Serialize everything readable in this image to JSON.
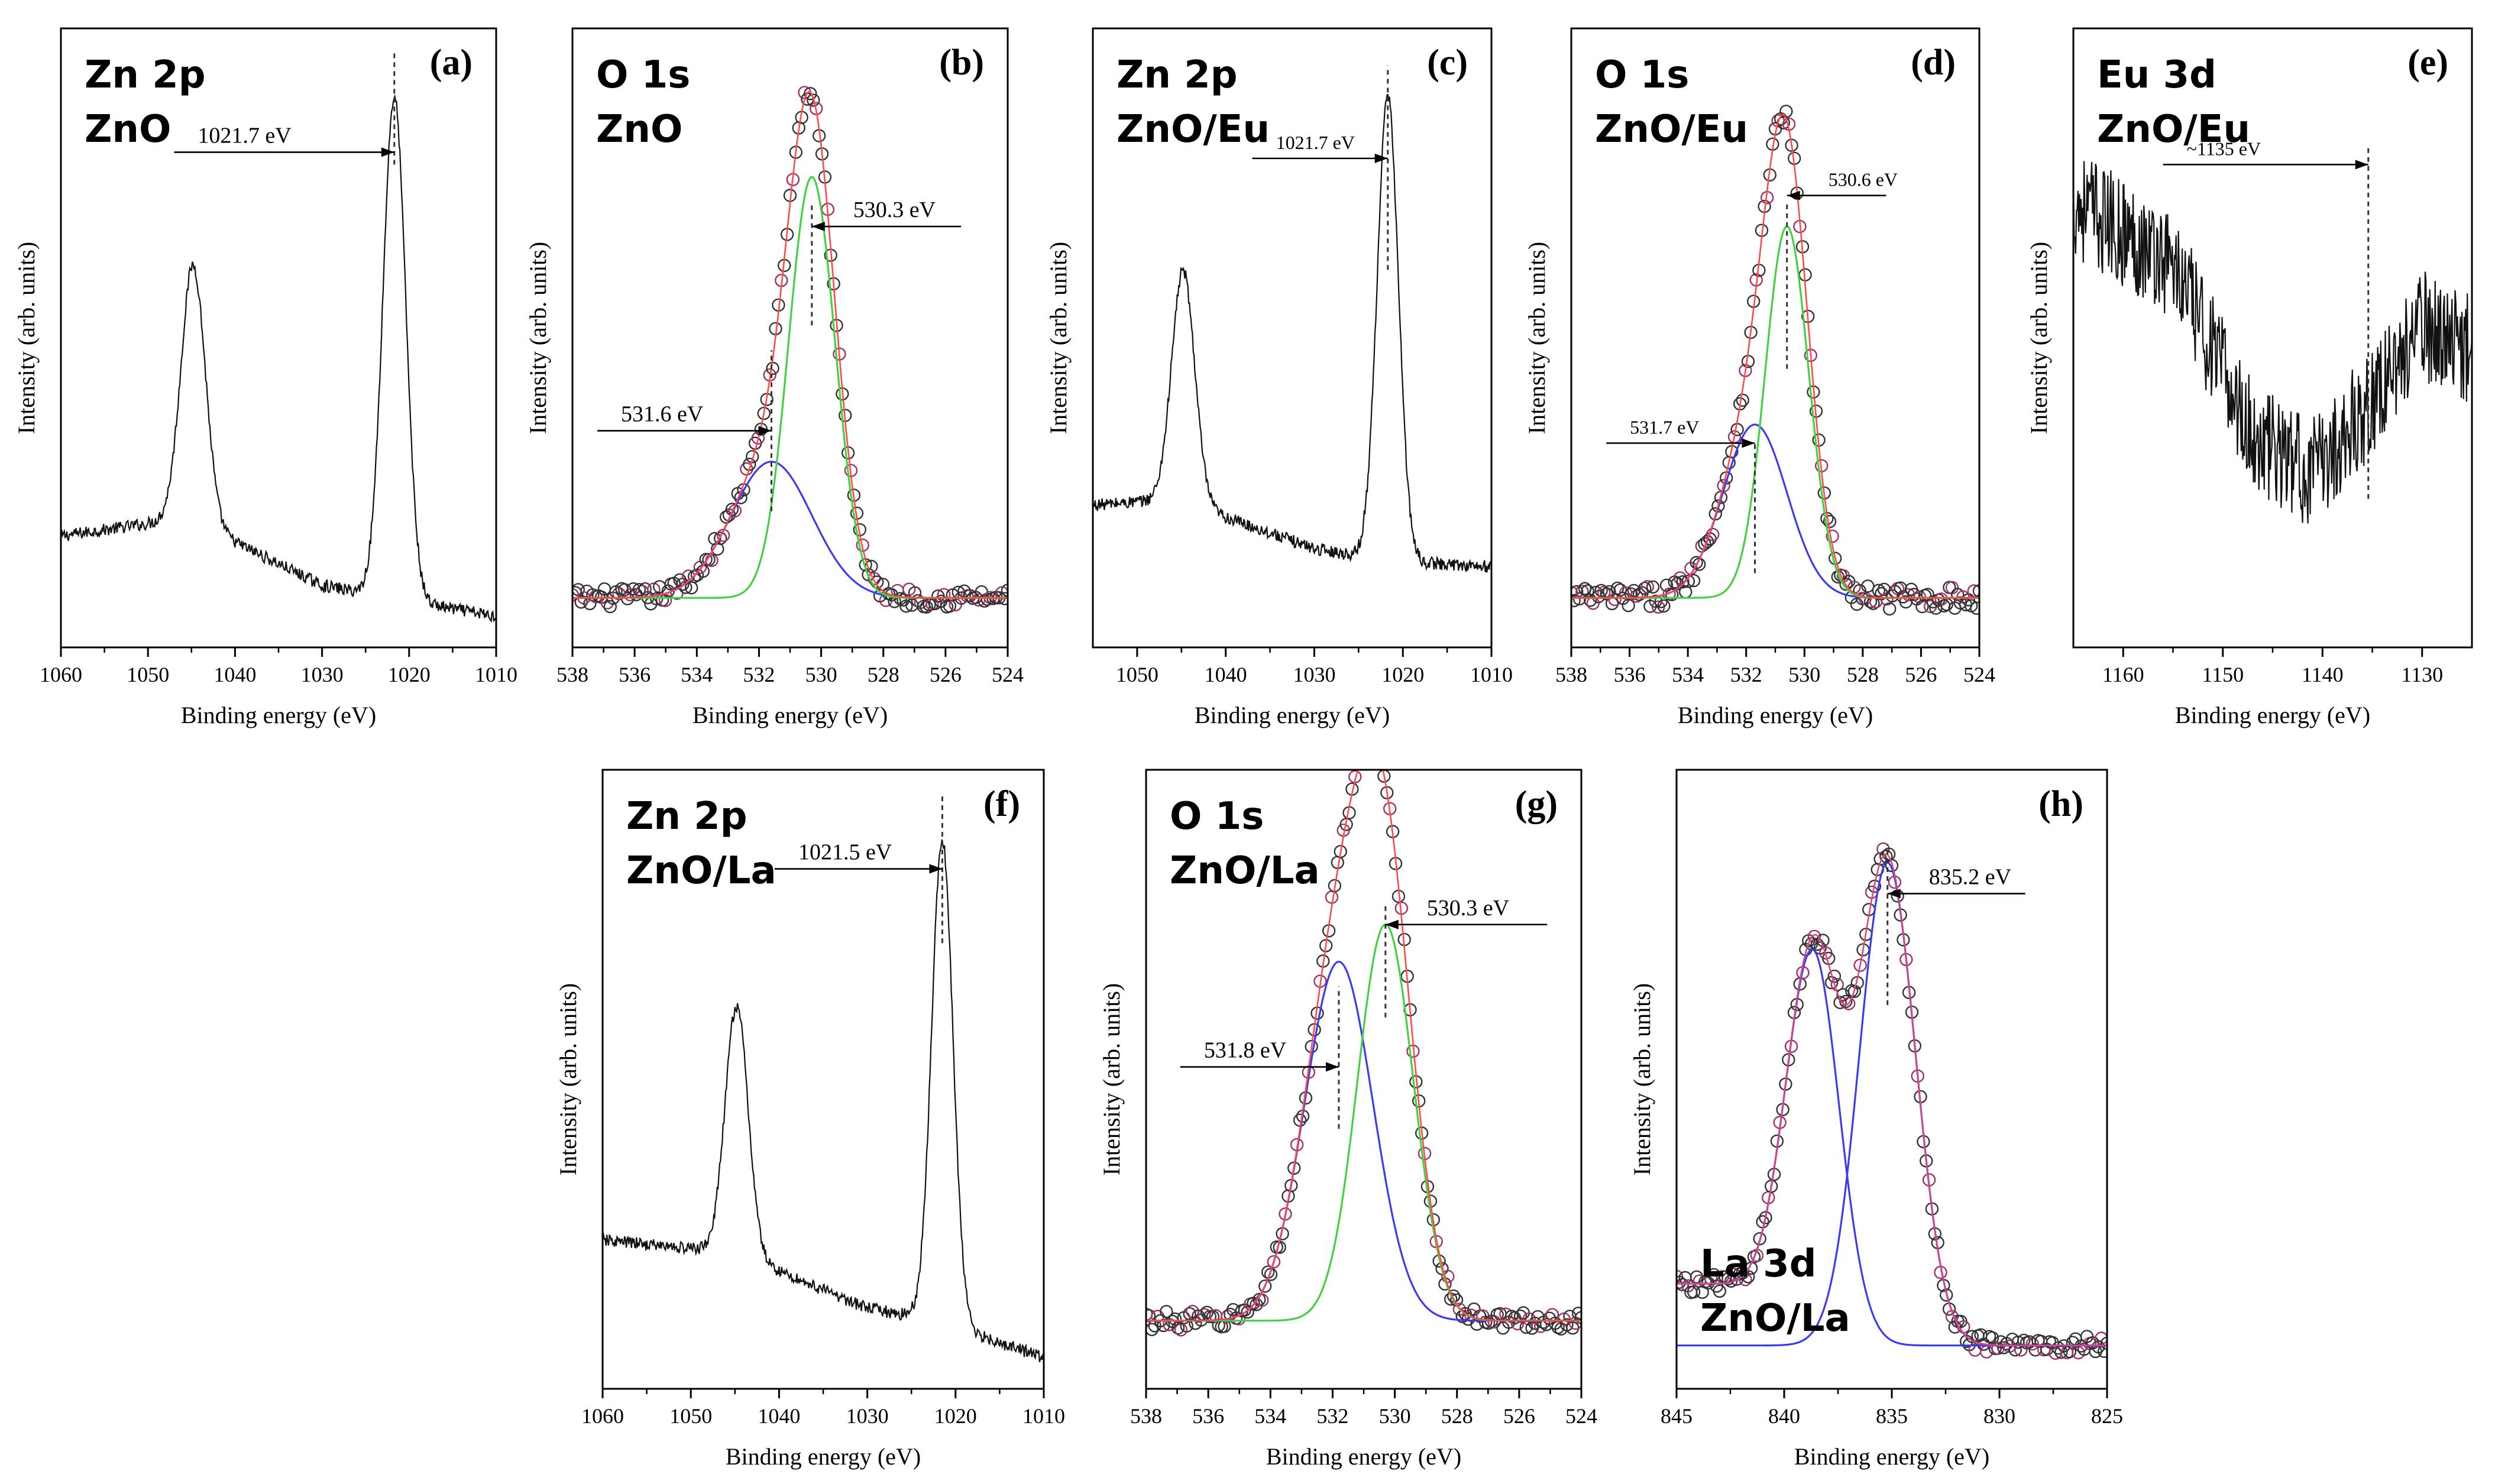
{
  "chart_data": [
    {
      "id": "a",
      "letter": "(a)",
      "type": "line",
      "title_lines": [
        "Zn 2p",
        "ZnO"
      ],
      "xlabel": "Binding energy (eV)",
      "ylabel": "Intensity (arb. units)",
      "xlim": [
        1060,
        1010
      ],
      "ylim": [
        0,
        100
      ],
      "xticks": [
        1060,
        1050,
        1040,
        1030,
        1020,
        1010
      ],
      "series": [
        {
          "name": "spectrum",
          "style": "black-noisy",
          "baseline": [
            [
              1060,
              18
            ],
            [
              1045,
              21
            ],
            [
              1040,
              17
            ],
            [
              1030,
              10
            ],
            [
              1022,
              8
            ],
            [
              1010,
              5
            ]
          ],
          "peaks": [
            {
              "center": 1044.8,
              "height": 41,
              "width": 1.4
            },
            {
              "center": 1021.7,
              "height": 81,
              "width": 1.3
            }
          ],
          "noise": 1.0
        }
      ],
      "annotations": [
        {
          "text": "1021.7 eV",
          "x": 1021.7,
          "y": 80,
          "from_x": 1047,
          "dir": "right",
          "text_size": "normal"
        }
      ],
      "dashed_lines": [
        {
          "x": 1021.7,
          "y0": 78,
          "y1": 96
        }
      ]
    },
    {
      "id": "b",
      "letter": "(b)",
      "type": "line",
      "title_lines": [
        "O 1s",
        "ZnO"
      ],
      "xlabel": "Binding energy (eV)",
      "ylabel": "Intensity (arb. units)",
      "xlim": [
        538,
        524
      ],
      "ylim": [
        0,
        100
      ],
      "xticks": [
        538,
        536,
        534,
        532,
        530,
        528,
        526,
        524
      ],
      "components": [
        {
          "name": "O 1s component 531.6 eV",
          "color": "#3b3bf0",
          "center": 531.6,
          "height": 22,
          "width": 1.3,
          "offset": 8
        },
        {
          "name": "O 1s component 530.3 eV",
          "color": "#43d143",
          "center": 530.3,
          "height": 68,
          "width": 0.75,
          "offset": 8
        }
      ],
      "fit_color": "#ff4a4a",
      "markers": true,
      "marker_noise": 1.5,
      "annotations": [
        {
          "text": "530.3 eV",
          "x": 530.3,
          "y": 68,
          "from_x": 525.5,
          "dir": "left",
          "text_size": "normal"
        },
        {
          "text": "531.6 eV",
          "x": 531.6,
          "y": 35,
          "from_x": 537.2,
          "dir": "right",
          "text_size": "normal"
        }
      ],
      "dashed_lines": [
        {
          "x": 530.3,
          "y0": 52,
          "y1": 72
        },
        {
          "x": 531.6,
          "y0": 22,
          "y1": 48
        }
      ]
    },
    {
      "id": "c",
      "letter": "(c)",
      "type": "line",
      "title_lines": [
        "Zn 2p",
        "ZnO/Eu"
      ],
      "xlabel": "Binding energy (eV)",
      "ylabel": "Intensity (arb. units)",
      "xlim": [
        1055,
        1010
      ],
      "ylim": [
        0,
        100
      ],
      "xticks": [
        1050,
        1040,
        1030,
        1020,
        1010
      ],
      "series": [
        {
          "name": "spectrum",
          "style": "black-noisy",
          "baseline": [
            [
              1055,
              23
            ],
            [
              1045,
              24
            ],
            [
              1040,
              21
            ],
            [
              1030,
              16
            ],
            [
              1022,
              14
            ],
            [
              1010,
              13
            ]
          ],
          "peaks": [
            {
              "center": 1044.8,
              "height": 37,
              "width": 1.3
            },
            {
              "center": 1021.7,
              "height": 75,
              "width": 1.2
            }
          ],
          "noise": 1.0
        }
      ],
      "annotations": [
        {
          "text": "1021.7 eV",
          "x": 1021.7,
          "y": 79,
          "from_x": 1037,
          "dir": "right",
          "text_size": "small"
        }
      ],
      "dashed_lines": [
        {
          "x": 1021.7,
          "y0": 61,
          "y1": 94
        }
      ]
    },
    {
      "id": "d",
      "letter": "(d)",
      "type": "line",
      "title_lines": [
        "O 1s",
        "ZnO/Eu"
      ],
      "xlabel": "Binding energy (eV)",
      "ylabel": "Intensity (arb. units)",
      "xlim": [
        538,
        524
      ],
      "ylim": [
        0,
        100
      ],
      "xticks": [
        538,
        536,
        534,
        532,
        530,
        528,
        526,
        524
      ],
      "components": [
        {
          "name": "O 1s component 531.7 eV",
          "color": "#3b3bf0",
          "center": 531.7,
          "height": 28,
          "width": 1.1,
          "offset": 8
        },
        {
          "name": "O 1s component 530.6 eV",
          "color": "#43d143",
          "center": 530.6,
          "height": 60,
          "width": 0.75,
          "offset": 8
        }
      ],
      "fit_color": "#ff4a4a",
      "markers": true,
      "marker_noise": 1.8,
      "annotations": [
        {
          "text": "530.6 eV",
          "x": 530.6,
          "y": 73,
          "from_x": 527.2,
          "dir": "left",
          "text_size": "small"
        },
        {
          "text": "531.7 eV",
          "x": 531.7,
          "y": 33,
          "from_x": 536.8,
          "dir": "right",
          "text_size": "small"
        }
      ],
      "dashed_lines": [
        {
          "x": 530.6,
          "y0": 45,
          "y1": 72
        },
        {
          "x": 531.7,
          "y0": 12,
          "y1": 33
        }
      ]
    },
    {
      "id": "e",
      "letter": "(e)",
      "type": "line",
      "title_lines": [
        "Eu 3d",
        "ZnO/Eu"
      ],
      "xlabel": "Binding energy (eV)",
      "ylabel": "Intensity (arb. units)",
      "xlim": [
        1165,
        1125
      ],
      "ylim": [
        0,
        100
      ],
      "xticks": [
        1160,
        1150,
        1140,
        1130
      ],
      "series": [
        {
          "name": "spectrum",
          "style": "black-very-noisy",
          "baseline": [
            [
              1165,
              72
            ],
            [
              1155,
              62
            ],
            [
              1147,
              34
            ],
            [
              1141,
              28
            ],
            [
              1135,
              40
            ],
            [
              1130,
              52
            ],
            [
              1125,
              48
            ]
          ],
          "peaks": [],
          "noise": 9
        }
      ],
      "annotations": [
        {
          "text": "~1135 eV",
          "x": 1135.4,
          "y": 78,
          "from_x": 1156,
          "dir": "right",
          "text_size": "small"
        }
      ],
      "dashed_lines": [
        {
          "x": 1135.4,
          "y0": 24,
          "y1": 81
        }
      ]
    },
    {
      "id": "f",
      "letter": "(f)",
      "type": "line",
      "title_lines": [
        "Zn 2p",
        "ZnO/La"
      ],
      "xlabel": "Binding energy (eV)",
      "ylabel": "Intensity (arb. units)",
      "xlim": [
        1060,
        1010
      ],
      "ylim": [
        0,
        100
      ],
      "xticks": [
        1060,
        1050,
        1040,
        1030,
        1020,
        1010
      ],
      "series": [
        {
          "name": "spectrum",
          "style": "black-noisy",
          "baseline": [
            [
              1060,
              24
            ],
            [
              1045,
              22
            ],
            [
              1040,
              19
            ],
            [
              1030,
              13
            ],
            [
              1022,
              11
            ],
            [
              1010,
              5
            ]
          ],
          "peaks": [
            {
              "center": 1044.8,
              "height": 40,
              "width": 1.3
            },
            {
              "center": 1021.5,
              "height": 78,
              "width": 1.2
            }
          ],
          "noise": 1.0
        }
      ],
      "annotations": [
        {
          "text": "1021.5 eV",
          "x": 1021.5,
          "y": 84,
          "from_x": 1040.5,
          "dir": "right",
          "text_size": "normal"
        }
      ],
      "dashed_lines": [
        {
          "x": 1021.5,
          "y0": 72,
          "y1": 96
        }
      ]
    },
    {
      "id": "g",
      "letter": "(g)",
      "type": "line",
      "title_lines": [
        "O 1s",
        "ZnO/La"
      ],
      "xlabel": "Binding energy (eV)",
      "ylabel": "Intensity (arb. units)",
      "xlim": [
        538,
        524
      ],
      "ylim": [
        0,
        100
      ],
      "xticks": [
        538,
        536,
        534,
        532,
        530,
        528,
        526,
        524
      ],
      "components": [
        {
          "name": "O 1s component 531.8 eV",
          "color": "#3b3bf0",
          "center": 531.8,
          "height": 58,
          "width": 1.1,
          "offset": 11
        },
        {
          "name": "O 1s component 530.3 eV",
          "color": "#43d143",
          "center": 530.3,
          "height": 64,
          "width": 0.9,
          "offset": 11
        }
      ],
      "fit_color": "#ff4a4a",
      "markers": true,
      "marker_noise": 1.5,
      "annotations": [
        {
          "text": "530.3 eV",
          "x": 530.3,
          "y": 75,
          "from_x": 525.1,
          "dir": "left",
          "text_size": "normal"
        },
        {
          "text": "531.8 eV",
          "x": 531.8,
          "y": 52,
          "from_x": 536.9,
          "dir": "right",
          "text_size": "normal"
        }
      ],
      "dashed_lines": [
        {
          "x": 530.3,
          "y0": 60,
          "y1": 78
        },
        {
          "x": 531.8,
          "y0": 42,
          "y1": 65
        }
      ]
    },
    {
      "id": "h",
      "letter": "(h)",
      "type": "line",
      "title_lines": [
        "La 3d",
        "ZnO/La"
      ],
      "title_position": "bottom-left",
      "xlabel": "Binding energy (eV)",
      "ylabel": "Intensity (arb. units)",
      "xlim": [
        845,
        825
      ],
      "ylim": [
        0,
        100
      ],
      "xticks": [
        845,
        840,
        835,
        830,
        825
      ],
      "components": [
        {
          "name": "La 3d component 838.7 eV",
          "color": "#3b3bf0",
          "center": 838.7,
          "height": 64,
          "width": 1.25,
          "offset": 7,
          "shoulder": {
            "from": 838.7,
            "level": 10
          }
        },
        {
          "name": "La 3d component 835.2 eV",
          "color": "#3b3bf0",
          "center": 835.2,
          "height": 78,
          "width": 1.3,
          "offset": 7
        }
      ],
      "fit_color": "#d94a7a",
      "markers": true,
      "marker_noise": 1.5,
      "annotations": [
        {
          "text": "835.2 eV",
          "x": 835.2,
          "y": 80,
          "from_x": 828.8,
          "dir": "left",
          "text_size": "normal"
        }
      ],
      "dashed_lines": [
        {
          "x": 835.2,
          "y0": 62,
          "y1": 88
        }
      ]
    }
  ]
}
